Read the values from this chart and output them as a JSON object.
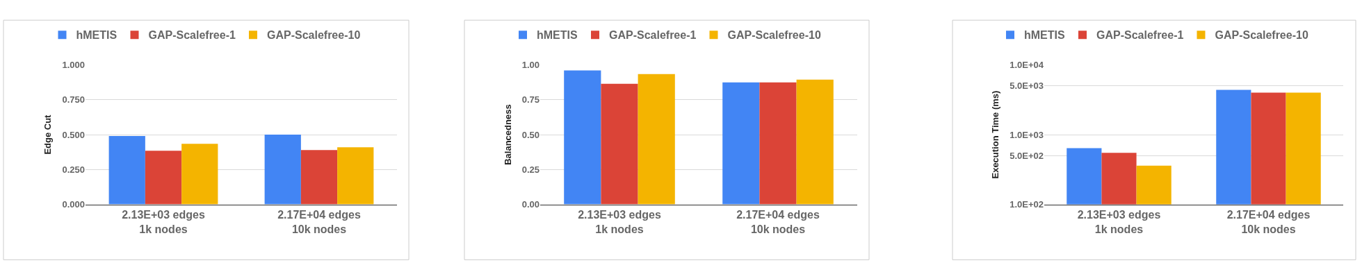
{
  "chart_data": [
    {
      "type": "bar",
      "ylabel": "Edge Cut",
      "categories": [
        "2.13E+03 edges\n1k nodes",
        "2.17E+04 edges\n10k nodes"
      ],
      "series": [
        {
          "name": "hMETIS",
          "color": "#4285f4",
          "values": [
            0.49,
            0.5
          ]
        },
        {
          "name": "GAP-Scalefree-1",
          "color": "#db4437",
          "values": [
            0.385,
            0.39
          ]
        },
        {
          "name": "GAP-Scalefree-10",
          "color": "#f4b400",
          "values": [
            0.435,
            0.41
          ]
        }
      ],
      "ylim": [
        0,
        1
      ],
      "yticks": [
        {
          "value": 0,
          "label": "0.000"
        },
        {
          "value": 0.25,
          "label": "0.250"
        },
        {
          "value": 0.5,
          "label": "0.500"
        },
        {
          "value": 0.75,
          "label": "0.750"
        },
        {
          "value": 1,
          "label": "1.000"
        }
      ],
      "grid": "y",
      "legend": "top"
    },
    {
      "type": "bar",
      "ylabel": "Balancedness",
      "categories": [
        "2.13E+03 edges\n1k nodes",
        "2.17E+04 edges\n10k nodes"
      ],
      "series": [
        {
          "name": "hMETIS",
          "color": "#4285f4",
          "values": [
            0.96,
            0.875
          ]
        },
        {
          "name": "GAP-Scalefree-1",
          "color": "#db4437",
          "values": [
            0.865,
            0.875
          ]
        },
        {
          "name": "GAP-Scalefree-10",
          "color": "#f4b400",
          "values": [
            0.935,
            0.895
          ]
        }
      ],
      "ylim": [
        0,
        1
      ],
      "yticks": [
        {
          "value": 0,
          "label": "0.00"
        },
        0.25,
        {
          "value": 0.5,
          "label": "0.50"
        },
        0.75,
        {
          "value": 1,
          "label": "1.00"
        }
      ],
      "grid": "y",
      "legend": "top"
    },
    {
      "type": "bar",
      "ylabel": "Execution Time (ms)",
      "categories": [
        "2.13E+03 edges\n1k nodes",
        "2.17E+04 edges\n10k nodes"
      ],
      "series": [
        {
          "name": "hMETIS",
          "color": "#4285f4",
          "values": [
            640,
            4400
          ]
        },
        {
          "name": "GAP-Scalefree-1",
          "color": "#db4437",
          "values": [
            550,
            4000
          ]
        },
        {
          "name": "GAP-Scalefree-10",
          "color": "#f4b400",
          "values": [
            360,
            4000
          ]
        }
      ],
      "log": true,
      "ylim": [
        100,
        10000
      ],
      "yticks": [
        {
          "value": 100,
          "label": "1.0E+02"
        },
        {
          "value": 500,
          "label": "5.0E+02"
        },
        {
          "value": 1000,
          "label": "1.0E+03"
        },
        {
          "value": 5000,
          "label": "5.0E+03"
        },
        {
          "value": 10000,
          "label": "1.0E+04"
        }
      ],
      "grid": "y",
      "legend": "top"
    }
  ]
}
